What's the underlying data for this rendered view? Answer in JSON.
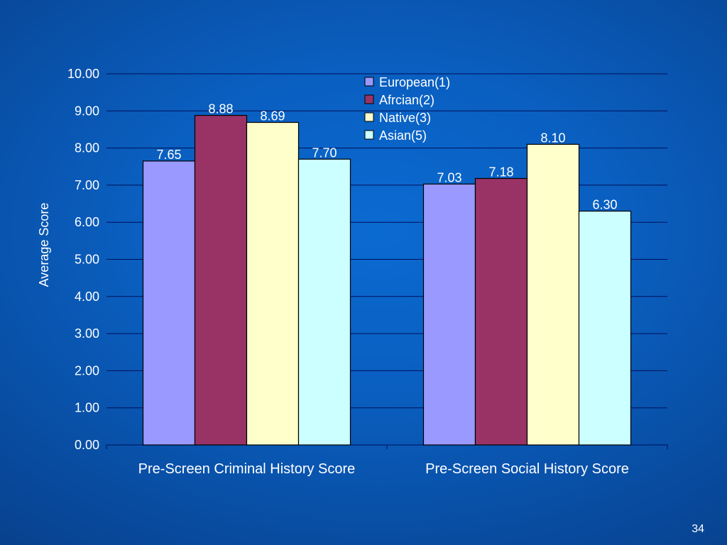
{
  "slide": {
    "number": "34"
  },
  "colors": {
    "background": "#0a5fc0",
    "gridline": "#000f5a",
    "bar_outline": "#000000",
    "text": "#ffffff"
  },
  "chart_data": {
    "type": "bar",
    "title": "",
    "xlabel": "",
    "ylabel": "Average Score",
    "ylim": [
      0,
      10
    ],
    "yticks": [
      "0.00",
      "1.00",
      "2.00",
      "3.00",
      "4.00",
      "5.00",
      "6.00",
      "7.00",
      "8.00",
      "9.00",
      "10.00"
    ],
    "grid": true,
    "legend_position": "top-center",
    "categories": [
      "Pre-Screen Criminal History Score",
      "Pre-Screen Social History Score"
    ],
    "series": [
      {
        "name": "European(1)",
        "color": "#9999ff",
        "values": [
          7.65,
          7.03
        ],
        "labels": [
          "7.65",
          "7.03"
        ]
      },
      {
        "name": "Afrcian(2)",
        "color": "#993366",
        "values": [
          8.88,
          7.18
        ],
        "labels": [
          "8.88",
          "7.18"
        ]
      },
      {
        "name": "Native(3)",
        "color": "#ffffcc",
        "values": [
          8.69,
          8.1
        ],
        "labels": [
          "8.69",
          "8.10"
        ]
      },
      {
        "name": "Asian(5)",
        "color": "#ccffff",
        "values": [
          7.7,
          6.3
        ],
        "labels": [
          "7.70",
          "6.30"
        ]
      }
    ]
  }
}
